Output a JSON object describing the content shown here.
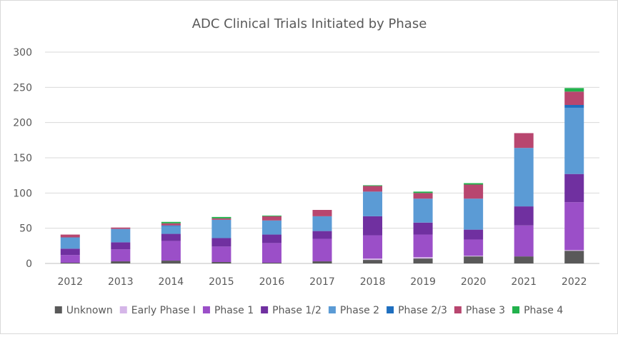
{
  "chart_data": {
    "type": "bar",
    "stacked": true,
    "title": "ADC Clinical Trials Initiated by Phase",
    "xlabel": "",
    "ylabel": "",
    "ylim": [
      0,
      300
    ],
    "yticks": [
      0,
      50,
      100,
      150,
      200,
      250,
      300
    ],
    "grid": true,
    "legend_position": "bottom",
    "categories": [
      "2012",
      "2013",
      "2014",
      "2015",
      "2016",
      "2017",
      "2018",
      "2019",
      "2020",
      "2021",
      "2022"
    ],
    "series": [
      {
        "name": "Unknown",
        "color": "#595959",
        "values": [
          1,
          3,
          4,
          2,
          1,
          3,
          5,
          7,
          10,
          10,
          18
        ]
      },
      {
        "name": "Early Phase I",
        "color": "#d5b6e8",
        "values": [
          0,
          0,
          0,
          0,
          0,
          0,
          2,
          2,
          1,
          0,
          1
        ]
      },
      {
        "name": "Phase 1",
        "color": "#9b4fc8",
        "values": [
          11,
          17,
          28,
          22,
          28,
          32,
          33,
          32,
          23,
          44,
          68
        ]
      },
      {
        "name": "Phase 1/2",
        "color": "#7030a0",
        "values": [
          9,
          10,
          10,
          12,
          12,
          11,
          27,
          17,
          14,
          27,
          40
        ]
      },
      {
        "name": "Phase 2",
        "color": "#5b9bd5",
        "values": [
          16,
          19,
          11,
          26,
          20,
          21,
          35,
          34,
          44,
          83,
          94
        ]
      },
      {
        "name": "Phase 2/3",
        "color": "#1f6fbf",
        "values": [
          0,
          0,
          1,
          0,
          0,
          0,
          0,
          0,
          0,
          0,
          4
        ]
      },
      {
        "name": "Phase 3",
        "color": "#b8466f",
        "values": [
          4,
          2,
          3,
          2,
          6,
          9,
          8,
          8,
          20,
          21,
          19
        ]
      },
      {
        "name": "Phase 4",
        "color": "#22b14c",
        "values": [
          0,
          0,
          2,
          2,
          1,
          0,
          1,
          2,
          2,
          0,
          5
        ]
      }
    ]
  }
}
